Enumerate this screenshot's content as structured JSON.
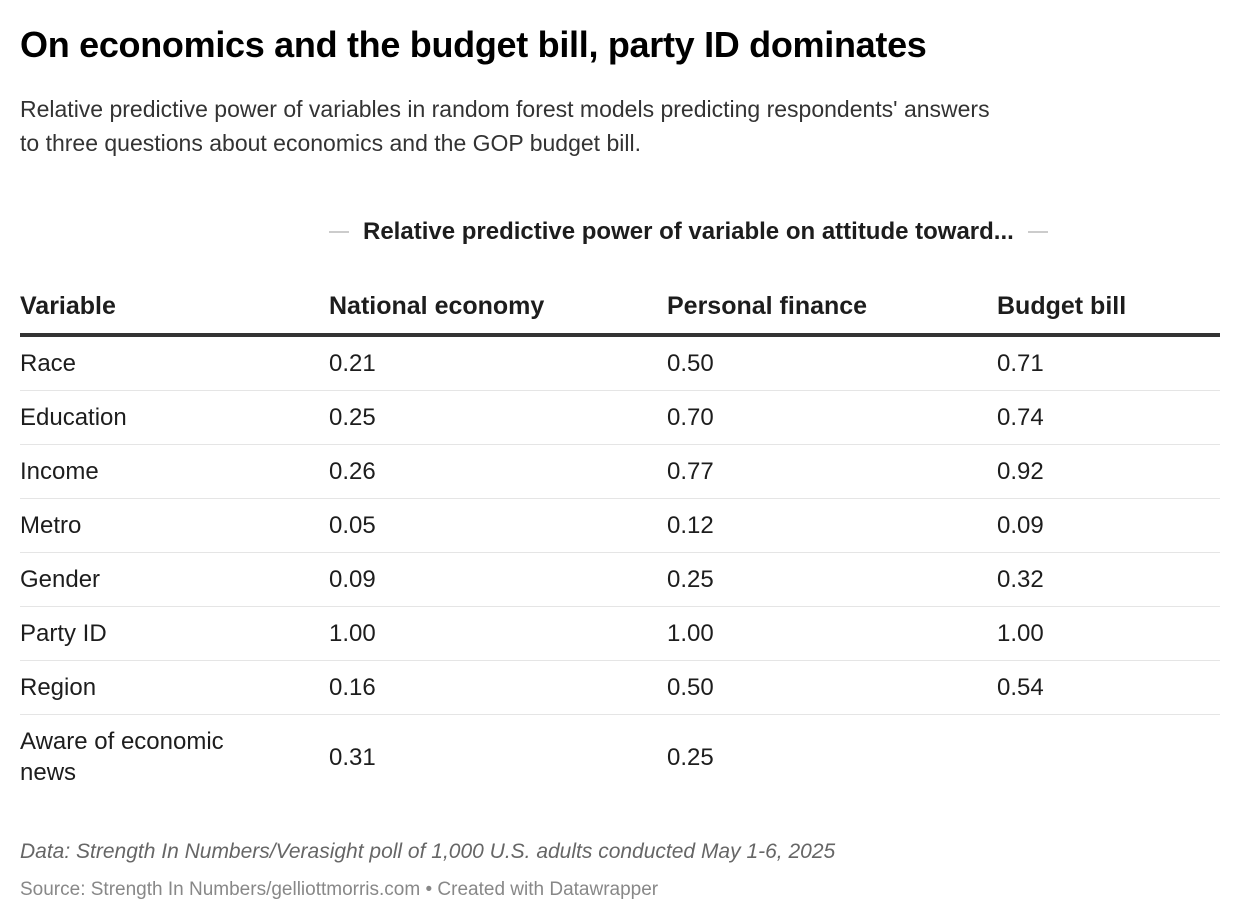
{
  "title": "On economics and the budget bill, party ID dominates",
  "subtitle_lines": [
    "Relative predictive power of variables in random forest models predicting respondents' answers",
    "to three questions about economics and the GOP budget bill."
  ],
  "chart_data": {
    "type": "table",
    "spanner": "Relative predictive power of variable on attitude toward...",
    "columns": [
      "Variable",
      "National economy",
      "Personal finance",
      "Budget bill"
    ],
    "rows": [
      [
        "Race",
        "0.21",
        "0.50",
        "0.71"
      ],
      [
        "Education",
        "0.25",
        "0.70",
        "0.74"
      ],
      [
        "Income",
        "0.26",
        "0.77",
        "0.92"
      ],
      [
        "Metro",
        "0.05",
        "0.12",
        "0.09"
      ],
      [
        "Gender",
        "0.09",
        "0.25",
        "0.32"
      ],
      [
        "Party ID",
        "1.00",
        "1.00",
        "1.00"
      ],
      [
        "Region",
        "0.16",
        "0.50",
        "0.54"
      ],
      [
        "Aware of economic news",
        "0.31",
        "0.25",
        ""
      ]
    ]
  },
  "footer": {
    "notes": "Data: Strength In Numbers/Verasight poll of 1,000 U.S. adults conducted May 1-6, 2025",
    "source": "Source: Strength In Numbers/gelliottmorris.com • Created with Datawrapper"
  },
  "colors": {
    "header_rule": "#333333",
    "row_rule": "#e5e5e5",
    "notes": "#666666",
    "source": "#888888"
  }
}
